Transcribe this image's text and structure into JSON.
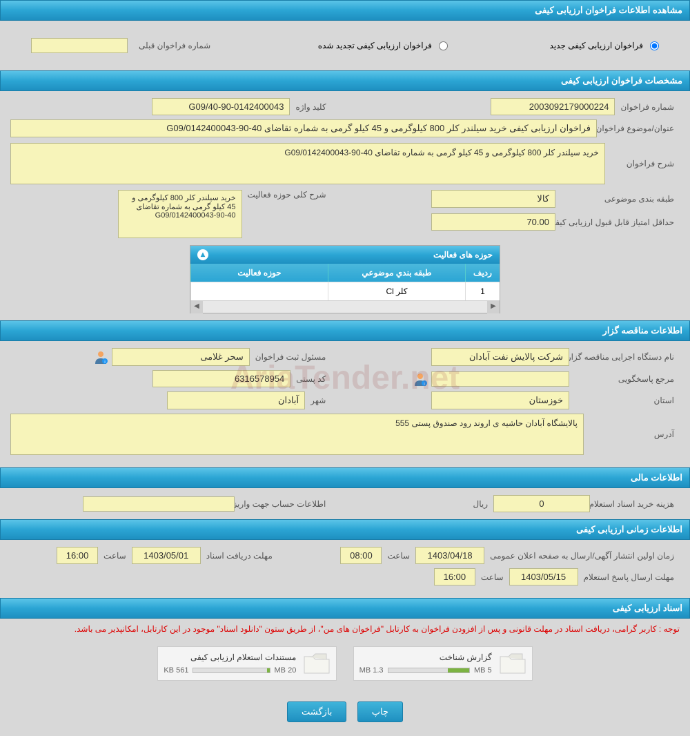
{
  "header1": "مشاهده اطلاعات فراخوان ارزیابی کیفی",
  "radio": {
    "new": "فراخوان ارزیابی کیفی جدید",
    "renewed": "فراخوان ارزیابی کیفی تجدید شده",
    "prev_label": "شماره فراخوان قبلی",
    "prev_value": ""
  },
  "header2": "مشخصات فراخوان ارزیابی کیفی",
  "spec": {
    "call_no_label": "شماره فراخوان",
    "call_no": "2003092179000224",
    "keyword_label": "کلید واژه",
    "keyword": "G09/40-90-0142400043",
    "title_label": "عنوان/موضوع فراخوان",
    "title": "فراخوان ارزیابی کیفی خرید سیلندر کلر 800 کیلوگرمی و 45 کیلو گرمی به شماره تقاضای 40-90-G09/0142400043",
    "desc_label": "شرح فراخوان",
    "desc": "خرید سیلندر کلر 800 کیلوگرمی و 45 کیلو گرمی به شماره تقاضای 40-90-G09/0142400043",
    "class_label": "طبقه بندی موضوعی",
    "class": "کالا",
    "activity_desc_label": "شرح کلی حوزه فعالیت",
    "activity_desc": "خرید سیلندر کلر 800 کیلوگرمی و 45 کیلو گرمی به شماره تقاضای 40-90-G09/0142400043",
    "min_score_label": "حداقل امتیاز قابل قبول ارزیابی کیفی",
    "min_score": "70.00"
  },
  "activity_table": {
    "title": "حوزه های فعالیت",
    "col_idx": "ردیف",
    "col_cat": "طبقه بندي موضوعي",
    "col_act": "حوزه فعالیت",
    "row": {
      "idx": "1",
      "cat": "کلر Cl",
      "act": ""
    }
  },
  "header3": "اطلاعات مناقصه گزار",
  "org": {
    "name_label": "نام دستگاه اجرایی مناقصه گزار",
    "name": "شرکت پالایش نفت آبادان",
    "reg_label": "مسئول ثبت فراخوان",
    "reg": "سحر غلامی",
    "ref_label": "مرجع پاسخگویی",
    "ref": "",
    "postal_label": "کد پستی",
    "postal": "6316578954",
    "province_label": "استان",
    "province": "خوزستان",
    "city_label": "شهر",
    "city": "آبادان",
    "addr_label": "آدرس",
    "addr": "پالایشگاه آبادان حاشیه ی اروند رود صندوق پستی 555"
  },
  "header4": "اطلاعات مالی",
  "fin": {
    "cost_label": "هزینه خرید اسناد استعلام ارزیابی کیفی",
    "cost": "0",
    "unit": "ریال",
    "account_label": "اطلاعات حساب جهت واریز هزینه خرید اسناد",
    "account": ""
  },
  "header5": "اطلاعات زمانی ارزیابی کیفی",
  "time": {
    "pub_label": "زمان اولین انتشار آگهی/ارسال به صفحه اعلان عمومی",
    "pub_date": "1403/04/18",
    "hour_label": "ساعت",
    "pub_hour": "08:00",
    "deadline_label": "مهلت دریافت اسناد",
    "deadline_date": "1403/05/01",
    "deadline_hour": "16:00",
    "reply_label": "مهلت ارسال پاسخ استعلام",
    "reply_date": "1403/05/15",
    "reply_hour": "16:00"
  },
  "header6": "اسناد ارزیابی کیفی",
  "notice": "توجه : کاربر گرامی، دریافت اسناد در مهلت قانونی و پس از افزودن فراخوان به کارتابل \"فراخوان های من\"، از طریق ستون \"دانلود اسناد\" موجود در این کارتابل، امکانپذیر می باشد.",
  "files": {
    "f1": {
      "title": "گزارش شناخت",
      "used": "1.3 MB",
      "total": "5 MB",
      "pct": 26
    },
    "f2": {
      "title": "مستندات استعلام ارزیابی کیفی",
      "used": "561 KB",
      "total": "20 MB",
      "pct": 3
    }
  },
  "buttons": {
    "print": "چاپ",
    "back": "بازگشت"
  },
  "colors": {
    "header_grad_top": "#5bc4e8",
    "header_grad_bot": "#1e8fc0",
    "field_bg": "#f7f4ba",
    "field_border": "#b8b88a",
    "body_bg": "#d8d8d8",
    "notice_color": "#d00",
    "bar_fill": "#7cb342"
  }
}
